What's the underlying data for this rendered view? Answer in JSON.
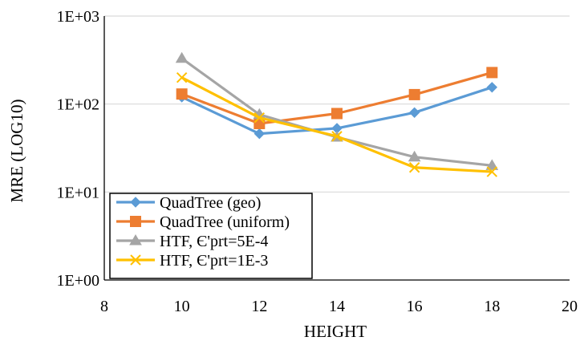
{
  "chart_data": {
    "type": "line",
    "title": "",
    "xlabel": "HEIGHT",
    "ylabel": "MRE (LOG10)",
    "y_scale": "log10",
    "xlim": [
      8,
      20
    ],
    "ylim": [
      1,
      1000
    ],
    "x_ticks": [
      8,
      10,
      12,
      14,
      16,
      18,
      20
    ],
    "x_tick_labels": [
      "8",
      "10",
      "12",
      "14",
      "16",
      "18",
      "20"
    ],
    "y_ticks": [
      1,
      10,
      100,
      1000
    ],
    "y_tick_labels": [
      "1E+00",
      "1E+01",
      "1E+02",
      "1E+03"
    ],
    "grid": "horizontal",
    "legend_position": "bottom-left",
    "series": [
      {
        "name": "QuadTree (geo)",
        "color": "#5B9BD5",
        "marker": "diamond",
        "x": [
          10,
          12,
          14,
          16,
          18
        ],
        "values": [
          120,
          46,
          53,
          80,
          155
        ]
      },
      {
        "name": "QuadTree (uniform)",
        "color": "#ED7D31",
        "marker": "square",
        "x": [
          10,
          12,
          14,
          16,
          18
        ],
        "values": [
          130,
          60,
          78,
          128,
          228
        ]
      },
      {
        "name": "HTF, Є'prt=5E-4",
        "color": "#A5A5A5",
        "marker": "triangle",
        "x": [
          10,
          12,
          14,
          16,
          18
        ],
        "values": [
          330,
          76,
          42,
          25,
          20
        ]
      },
      {
        "name": "HTF, Є'prt=1E-3",
        "color": "#FFC000",
        "marker": "x",
        "x": [
          10,
          12,
          14,
          16,
          18
        ],
        "values": [
          200,
          70,
          43,
          19,
          17
        ]
      }
    ]
  }
}
